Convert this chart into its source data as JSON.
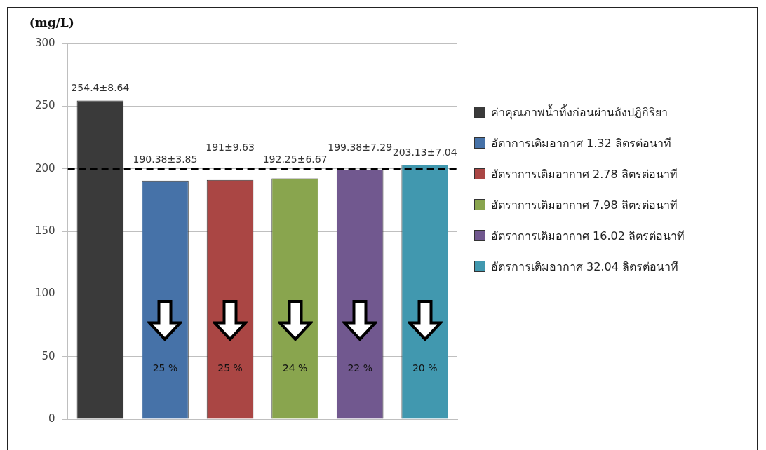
{
  "chart_data": {
    "type": "bar",
    "ylabel": "(mg/L)",
    "categories": [
      null,
      null,
      null,
      null,
      null,
      null
    ],
    "series": [
      {
        "name": "ค่าคุณภาพน้ำทิ้งก่อนผ่านถังปฏิกิริยา",
        "color": "#3a3a3a",
        "values": [
          254.4,
          null,
          null,
          null,
          null,
          null
        ],
        "value_labels": [
          "254.4±8.64",
          null,
          null,
          null,
          null,
          null
        ]
      },
      {
        "name": "อัตาการเติมอากาศ 1.32 ลิตรต่อนาที",
        "color": "#4672a8",
        "values": [
          null,
          190.38,
          null,
          null,
          null,
          null
        ],
        "value_labels": [
          null,
          "190.38±3.85",
          null,
          null,
          null,
          null
        ]
      },
      {
        "name": "อัตราการเติมอากาศ 2.78 ลิตรต่อนาที",
        "color": "#aa4644",
        "values": [
          null,
          null,
          191,
          null,
          null,
          null
        ],
        "value_labels": [
          null,
          null,
          "191±9.63",
          null,
          null,
          null
        ]
      },
      {
        "name": "อัตราการเติมอากาศ 7.98 ลิตรต่อนาที",
        "color": "#89a54e",
        "values": [
          null,
          null,
          null,
          192.25,
          null,
          null
        ],
        "value_labels": [
          null,
          null,
          null,
          "192.25±6.67",
          null,
          null
        ]
      },
      {
        "name": "อัตราการเติมอากาศ 16.02 ลิตรต่อนาที",
        "color": "#71588f",
        "values": [
          null,
          null,
          null,
          null,
          199.38,
          null
        ],
        "value_labels": [
          null,
          null,
          null,
          null,
          "199.38±7.29",
          null
        ]
      },
      {
        "name": "อัตรการเติมอากาศ 32.04 ลิตรต่อนาที",
        "color": "#4198af",
        "values": [
          null,
          null,
          null,
          null,
          null,
          203.13
        ],
        "value_labels": [
          null,
          null,
          null,
          null,
          null,
          "203.13±7.04"
        ]
      }
    ],
    "ylim": [
      0,
      300
    ],
    "yticks": [
      0,
      50,
      100,
      150,
      200,
      250,
      300
    ],
    "ref_lines": [
      {
        "axis": "y",
        "value": 200,
        "color": "#000000",
        "line_style": "dashed"
      }
    ],
    "annotations": [
      "25 %",
      "25 %",
      "24 %",
      "22 %",
      "20 %"
    ],
    "grid": "y",
    "legend": "right",
    "tick_labels": "y"
  }
}
